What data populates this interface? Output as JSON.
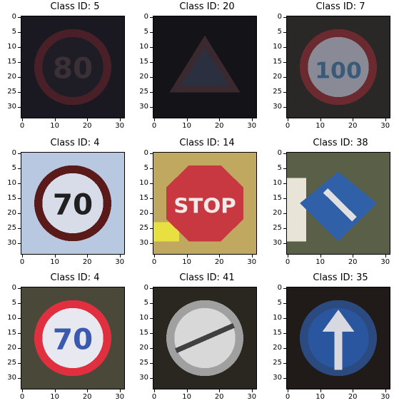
{
  "panels": [
    {
      "title": "Class ID: 5",
      "sign": "speed-80",
      "bg": "#1a1820",
      "ring": "#4a2028",
      "face": "#1e1c24",
      "text": "80",
      "textColor": "#3a3036"
    },
    {
      "title": "Class ID: 20",
      "sign": "triangle",
      "bg": "#141418",
      "ring": "#3a2a30",
      "face": "#2a3040",
      "text": "",
      "textColor": "#6a7888"
    },
    {
      "title": "Class ID: 7",
      "sign": "speed-100",
      "bg": "#2a2826",
      "ring": "#6a2a30",
      "face": "#8a8a96",
      "text": "100",
      "textColor": "#3a5a7a"
    },
    {
      "title": "Class ID: 4",
      "sign": "speed-70",
      "bg": "#b8c8e0",
      "ring": "#5a1a1a",
      "face": "#d8dce8",
      "text": "70",
      "textColor": "#202020"
    },
    {
      "title": "Class ID: 14",
      "sign": "stop",
      "bg": "#c0a860",
      "ring": "#c03038",
      "face": "#c83840",
      "text": "STOP",
      "textColor": "#f4e8e8"
    },
    {
      "title": "Class ID: 38",
      "sign": "keep-right",
      "bg": "#5a6048",
      "ring": "#3a6ab0",
      "face": "#3060a8",
      "text": "",
      "textColor": "#e0e0e0"
    },
    {
      "title": "Class ID: 4",
      "sign": "speed-70",
      "bg": "#4a4838",
      "ring": "#e03040",
      "face": "#e8e8f0",
      "text": "70",
      "textColor": "#3a5ab0"
    },
    {
      "title": "Class ID: 41",
      "sign": "end-no-pass",
      "bg": "#2a2620",
      "ring": "#a0a0a0",
      "face": "#d8d8d8",
      "text": "",
      "textColor": "#404040"
    },
    {
      "title": "Class ID: 35",
      "sign": "ahead-only",
      "bg": "#201a18",
      "ring": "#2a4a80",
      "face": "#2a56a0",
      "text": "",
      "textColor": "#d8d8e0"
    }
  ],
  "axis": {
    "yticks": [
      "0",
      "5",
      "10",
      "15",
      "20",
      "25",
      "30"
    ],
    "xticks": [
      "0",
      "10",
      "20",
      "30"
    ]
  }
}
